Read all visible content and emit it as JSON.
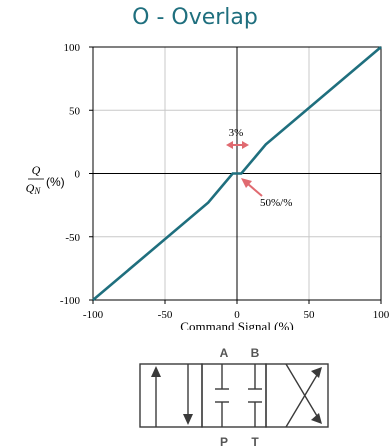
{
  "title": "O - Overlap",
  "chart_data": {
    "type": "line",
    "ylabel_top": "Q",
    "ylabel_bottom": "Q",
    "ylabel_subscript": "N",
    "ylabel_unit": "(%)",
    "xlabel": "Command Signal (%)",
    "xlim": [
      -100,
      100
    ],
    "ylim": [
      -100,
      100
    ],
    "x_ticks": [
      -100,
      -50,
      0,
      50,
      100
    ],
    "y_ticks": [
      -100,
      -50,
      0,
      50,
      100
    ],
    "x_tick_labels": [
      "-100",
      "-50",
      "0",
      "50",
      "100"
    ],
    "y_tick_labels": [
      "-100",
      "-50",
      "0",
      "50",
      "100"
    ],
    "grid": true,
    "series": [
      {
        "color": "#1f6f7e",
        "points": [
          {
            "x": -100,
            "y": -100
          },
          {
            "x": -20,
            "y": -23
          },
          {
            "x": -3,
            "y": 0
          },
          {
            "x": 3,
            "y": 0
          },
          {
            "x": 20,
            "y": 23
          },
          {
            "x": 100,
            "y": 100
          }
        ]
      }
    ],
    "annotations": {
      "deadband_label": "3%",
      "gain_label": "50%/%",
      "annotation_color": "#e06a70"
    }
  },
  "valve": {
    "port_a": "A",
    "port_b": "B",
    "port_p": "P",
    "port_t": "T"
  }
}
